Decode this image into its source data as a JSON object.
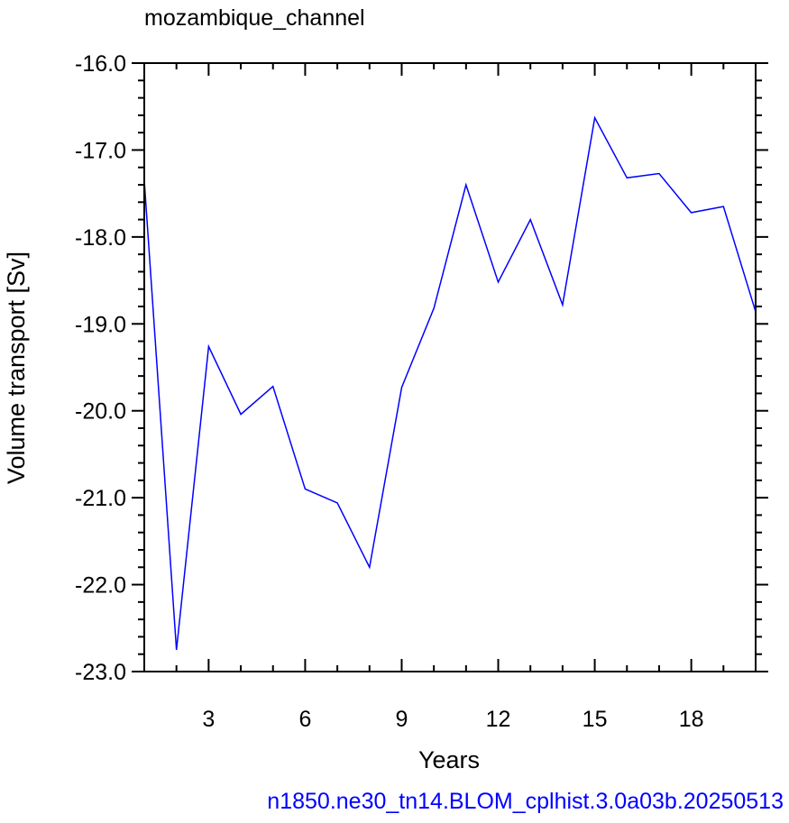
{
  "chart_data": {
    "type": "line",
    "title": "mozambique_channel",
    "xlabel": "Years",
    "ylabel": "Volume transport [Sv]",
    "footer": "n1850.ne30_tn14.BLOM_cplhist.3.0a03b.20250513",
    "xlim": [
      1,
      20
    ],
    "ylim": [
      -23.0,
      -16.0
    ],
    "x_ticks": [
      3,
      6,
      9,
      12,
      15,
      18
    ],
    "x_tick_labels": [
      "3",
      "6",
      "9",
      "12",
      "15",
      "18"
    ],
    "y_ticks": [
      -16,
      -17,
      -18,
      -19,
      -20,
      -21,
      -22,
      -23
    ],
    "y_tick_labels": [
      "-16.0",
      "-17.0",
      "-18.0",
      "-19.0",
      "-20.0",
      "-21.0",
      "-22.0",
      "-23.0"
    ],
    "grid": false,
    "line_color": "#0000ff",
    "footer_color": "#0000ff",
    "series": [
      {
        "x": [
          1,
          2,
          3,
          4,
          5,
          6,
          7,
          8,
          9,
          10,
          11,
          12,
          13,
          14,
          15,
          16,
          17,
          18,
          19,
          20
        ],
        "values": [
          -17.35,
          -22.75,
          -19.26,
          -20.04,
          -19.72,
          -20.9,
          -21.06,
          -21.8,
          -19.73,
          -18.82,
          -17.4,
          -18.52,
          -17.8,
          -18.78,
          -16.63,
          -17.32,
          -17.27,
          -17.72,
          -17.65,
          -18.86
        ]
      }
    ]
  }
}
